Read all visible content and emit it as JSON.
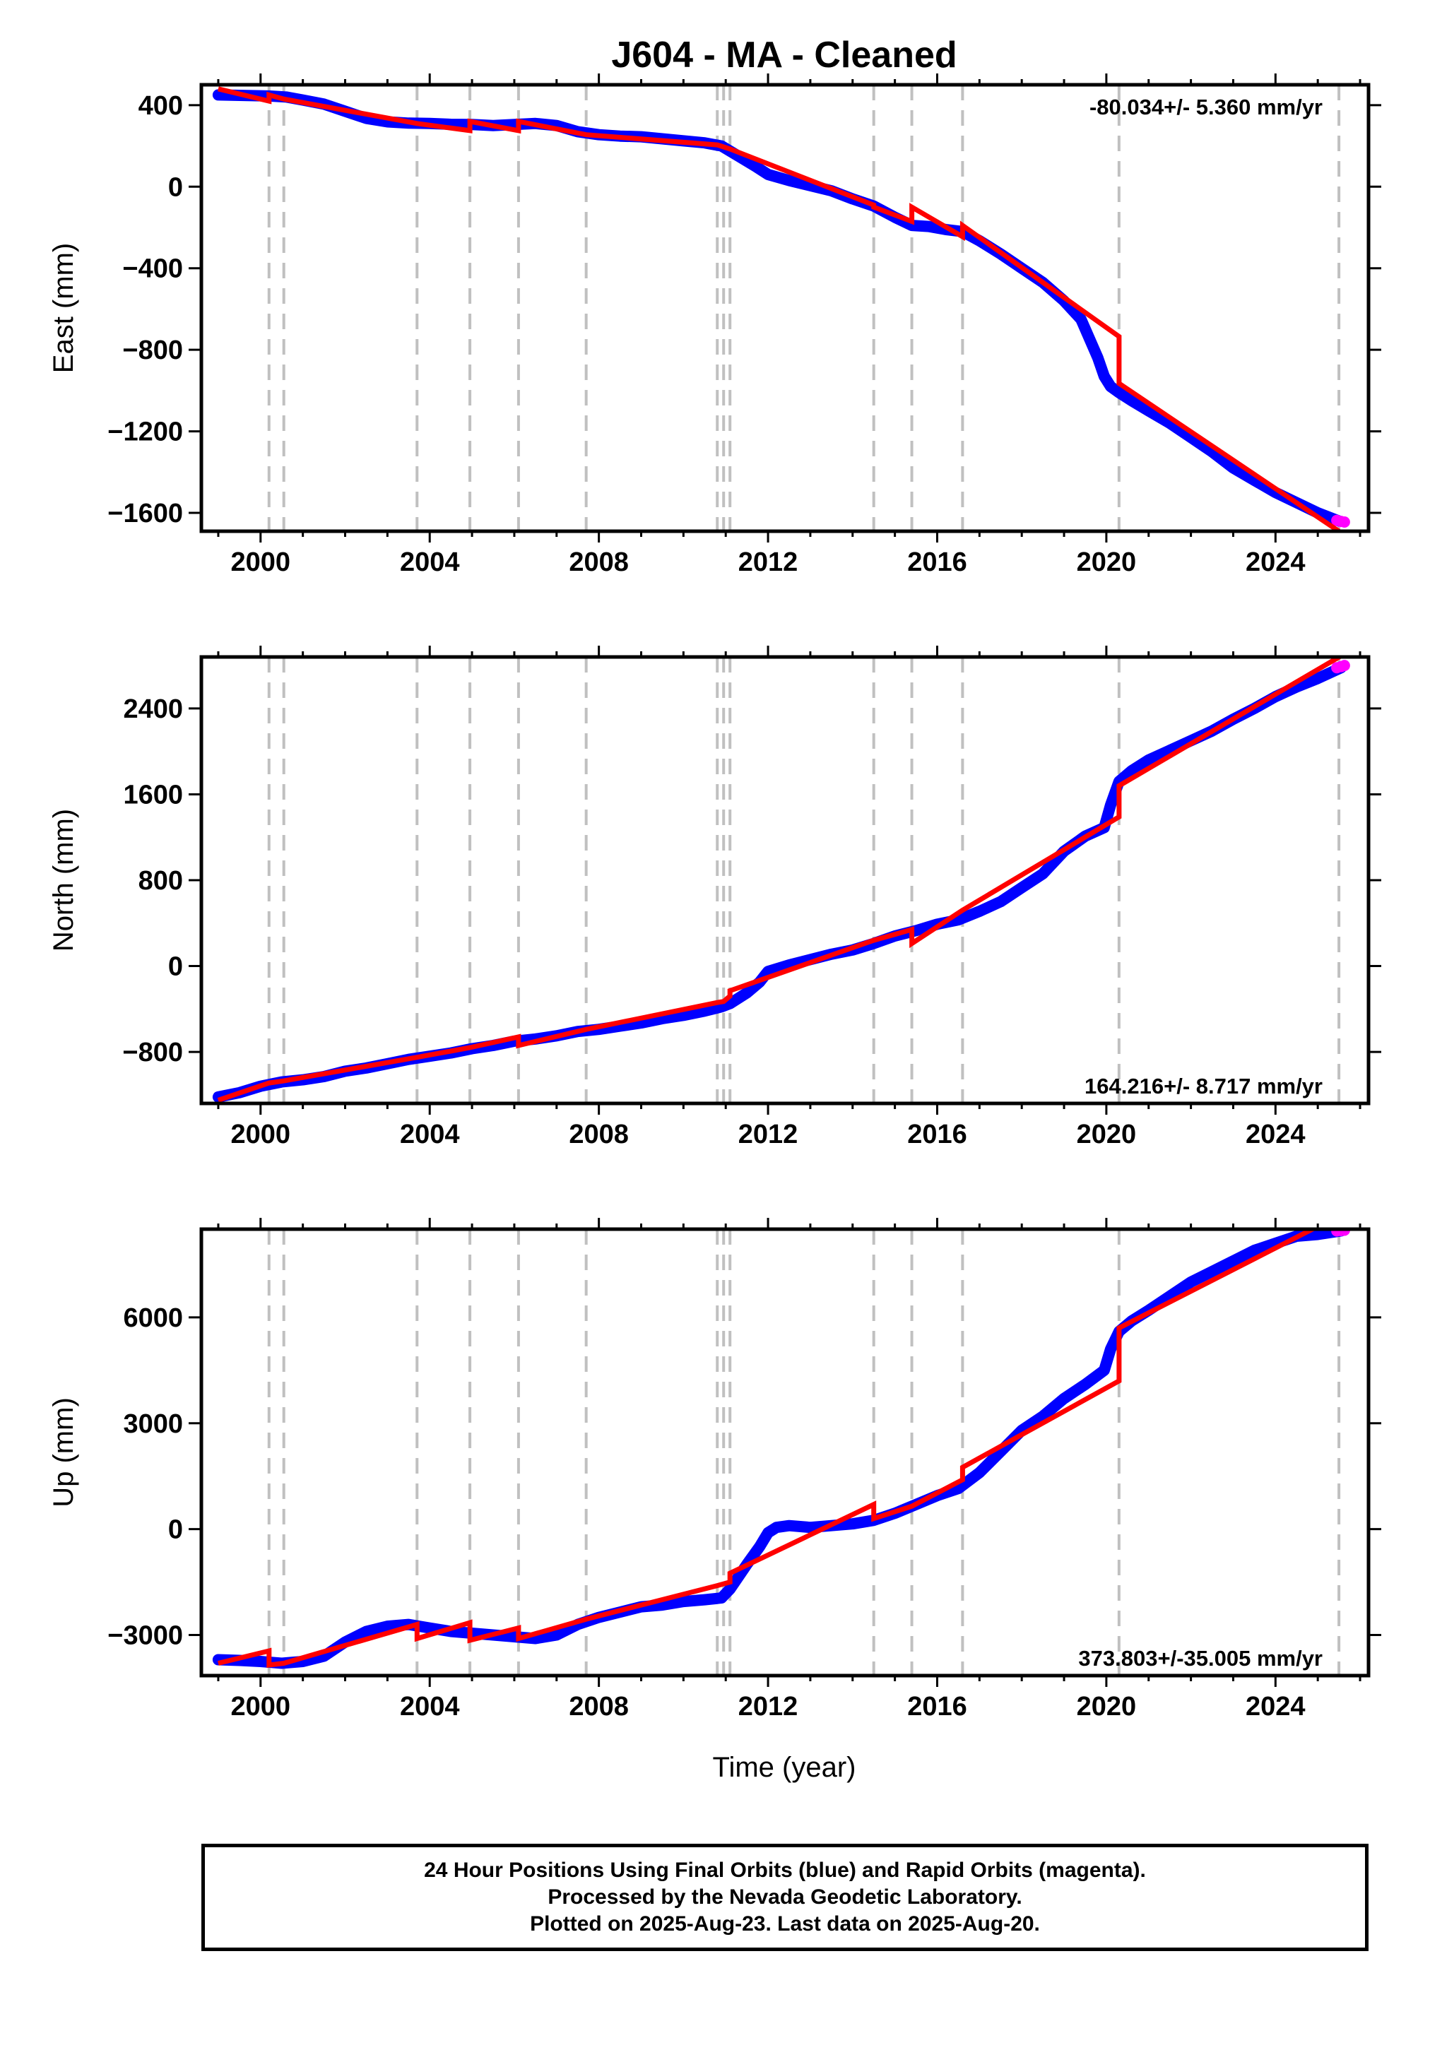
{
  "title": "J604  - MA - Cleaned",
  "xlabel": "Time (year)",
  "colors": {
    "final": "#0000ff",
    "rapid": "#ff00ff",
    "model": "#ff0000",
    "steps": "#c0c0c0"
  },
  "footer": {
    "line1": "24 Hour Positions Using Final Orbits (blue) and Rapid Orbits (magenta).",
    "line2": "Processed by the Nevada Geodetic Laboratory.",
    "line3": "Plotted on 2025-Aug-23. Last data on 2025-Aug-20."
  },
  "chart_data": [
    {
      "type": "scatter",
      "panel": "east",
      "title": "J604  - MA - Cleaned",
      "xlabel": "",
      "ylabel": "East (mm)",
      "rate_label": "-80.034+/- 5.360 mm/yr",
      "rate_position": "top-right",
      "xlim": [
        1998.6,
        2026.2
      ],
      "ylim": [
        -1690,
        500
      ],
      "xticks": [
        2000,
        2004,
        2008,
        2012,
        2016,
        2020,
        2024
      ],
      "xtick_labels": [
        "2000",
        "2004",
        "2008",
        "2012",
        "2016",
        "2020",
        "2024"
      ],
      "yticks": [
        400,
        0,
        -400,
        -800,
        -1200,
        -1600
      ],
      "ytick_labels": [
        "400",
        "0",
        "−400",
        "−800",
        "−1200",
        "−1600"
      ],
      "step_epochs": [
        2000.2,
        2000.55,
        2003.7,
        2004.95,
        2006.1,
        2007.7,
        2010.8,
        2010.95,
        2011.1,
        2014.5,
        2015.4,
        2016.6,
        2020.3,
        2025.5
      ],
      "series": [
        {
          "style": "final-orbits",
          "x": [
            1999.0,
            1999.5,
            2000.2,
            2000.6,
            2001.0,
            2001.5,
            2002.0,
            2002.5,
            2003.0,
            2003.5,
            2004.0,
            2004.5,
            2005.0,
            2005.5,
            2006.0,
            2006.5,
            2007.0,
            2007.5,
            2008.0,
            2008.5,
            2009.0,
            2009.5,
            2010.0,
            2010.5,
            2010.9,
            2011.3,
            2011.7,
            2012.0,
            2012.5,
            2013.0,
            2013.5,
            2014.0,
            2014.5,
            2015.0,
            2015.4,
            2015.8,
            2016.2,
            2016.6,
            2017.0,
            2017.5,
            2018.0,
            2018.5,
            2019.0,
            2019.4,
            2019.8,
            2019.95,
            2020.1,
            2020.3,
            2020.6,
            2021.0,
            2021.5,
            2022.0,
            2022.5,
            2023.0,
            2023.5,
            2024.0,
            2024.5,
            2025.0,
            2025.5
          ],
          "y": [
            450,
            448,
            445,
            440,
            425,
            405,
            370,
            335,
            318,
            312,
            310,
            306,
            305,
            300,
            305,
            310,
            300,
            270,
            255,
            248,
            245,
            235,
            225,
            215,
            200,
            150,
            100,
            60,
            30,
            5,
            -20,
            -60,
            -95,
            -150,
            -190,
            -195,
            -210,
            -220,
            -265,
            -330,
            -400,
            -470,
            -560,
            -650,
            -840,
            -930,
            -980,
            -1010,
            -1050,
            -1100,
            -1160,
            -1230,
            -1300,
            -1380,
            -1440,
            -1500,
            -1550,
            -1600,
            -1640
          ]
        },
        {
          "style": "rapid-orbits",
          "x": [
            2025.45,
            2025.55,
            2025.63
          ],
          "y": [
            -1637,
            -1642,
            -1645
          ]
        },
        {
          "style": "model",
          "x": [
            1999.0,
            2000.2,
            2000.2,
            2000.55,
            2000.55,
            2003.7,
            2003.7,
            2004.95,
            2004.95,
            2006.1,
            2006.1,
            2007.7,
            2007.7,
            2010.8,
            2010.8,
            2010.95,
            2010.95,
            2011.1,
            2011.1,
            2014.5,
            2014.5,
            2015.4,
            2015.4,
            2016.6,
            2016.6,
            2020.3,
            2020.3,
            2025.5
          ],
          "y": [
            480,
            420,
            450,
            430,
            430,
            310,
            310,
            275,
            320,
            275,
            320,
            255,
            255,
            205,
            205,
            195,
            195,
            185,
            185,
            -90,
            -100,
            -170,
            -100,
            -245,
            -190,
            -735,
            -965,
            -1690
          ]
        }
      ]
    },
    {
      "type": "scatter",
      "panel": "north",
      "xlabel": "",
      "ylabel": "North (mm)",
      "rate_label": "164.216+/- 8.717 mm/yr",
      "rate_position": "bottom-right",
      "xlim": [
        1998.6,
        2026.2
      ],
      "ylim": [
        -1280,
        2880
      ],
      "xticks": [
        2000,
        2004,
        2008,
        2012,
        2016,
        2020,
        2024
      ],
      "xtick_labels": [
        "2000",
        "2004",
        "2008",
        "2012",
        "2016",
        "2020",
        "2024"
      ],
      "yticks": [
        2400,
        1600,
        800,
        0,
        -800
      ],
      "ytick_labels": [
        "2400",
        "1600",
        "800",
        "0",
        "−800"
      ],
      "step_epochs": [
        2000.2,
        2000.55,
        2003.7,
        2004.95,
        2006.1,
        2007.7,
        2010.8,
        2010.95,
        2011.1,
        2014.5,
        2015.4,
        2016.6,
        2020.3,
        2025.5
      ],
      "series": [
        {
          "style": "final-orbits",
          "x": [
            1999.0,
            1999.5,
            2000.0,
            2000.5,
            2001.0,
            2001.5,
            2002.0,
            2002.5,
            2003.0,
            2003.5,
            2004.0,
            2004.5,
            2005.0,
            2005.5,
            2006.0,
            2006.5,
            2007.0,
            2007.5,
            2008.0,
            2008.5,
            2009.0,
            2009.5,
            2010.0,
            2010.5,
            2010.9,
            2011.1,
            2011.5,
            2011.8,
            2012.0,
            2012.5,
            2013.0,
            2013.5,
            2014.0,
            2014.5,
            2015.0,
            2015.5,
            2016.0,
            2016.5,
            2017.0,
            2017.5,
            2018.0,
            2018.5,
            2019.0,
            2019.5,
            2019.95,
            2020.1,
            2020.3,
            2020.6,
            2021.0,
            2021.5,
            2022.0,
            2022.5,
            2023.0,
            2023.5,
            2024.0,
            2024.5,
            2025.0,
            2025.55
          ],
          "y": [
            -1220,
            -1180,
            -1120,
            -1080,
            -1060,
            -1030,
            -980,
            -950,
            -910,
            -870,
            -840,
            -810,
            -770,
            -740,
            -700,
            -680,
            -650,
            -610,
            -590,
            -560,
            -530,
            -490,
            -460,
            -420,
            -380,
            -350,
            -250,
            -150,
            -50,
            10,
            60,
            110,
            150,
            210,
            280,
            330,
            390,
            430,
            510,
            600,
            730,
            860,
            1070,
            1210,
            1290,
            1500,
            1720,
            1820,
            1920,
            2010,
            2100,
            2190,
            2300,
            2400,
            2510,
            2600,
            2680,
            2780
          ]
        },
        {
          "style": "rapid-orbits",
          "x": [
            2025.45,
            2025.55,
            2025.63
          ],
          "y": [
            2780,
            2790,
            2800
          ]
        },
        {
          "style": "model",
          "x": [
            1999.0,
            2000.2,
            2000.2,
            2000.55,
            2000.55,
            2003.7,
            2003.7,
            2004.95,
            2004.95,
            2006.1,
            2006.1,
            2007.7,
            2007.7,
            2010.8,
            2010.8,
            2010.95,
            2010.95,
            2011.1,
            2011.1,
            2014.5,
            2014.5,
            2015.4,
            2015.4,
            2016.6,
            2016.6,
            2020.3,
            2020.3,
            2025.55
          ],
          "y": [
            -1250,
            -1090,
            -1090,
            -1070,
            -1070,
            -850,
            -850,
            -760,
            -760,
            -660,
            -740,
            -590,
            -590,
            -340,
            -340,
            -330,
            -330,
            -280,
            -230,
            240,
            240,
            340,
            210,
            520,
            520,
            1390,
            1680,
            2890
          ]
        }
      ]
    },
    {
      "type": "scatter",
      "panel": "up",
      "xlabel": "Time (year)",
      "ylabel": "Up (mm)",
      "rate_label": "373.803+/-35.005 mm/yr",
      "rate_position": "bottom-right",
      "xlim": [
        1998.6,
        2026.2
      ],
      "ylim": [
        -4150,
        8500
      ],
      "xticks": [
        2000,
        2004,
        2008,
        2012,
        2016,
        2020,
        2024
      ],
      "xtick_labels": [
        "2000",
        "2004",
        "2008",
        "2012",
        "2016",
        "2020",
        "2024"
      ],
      "yticks": [
        6000,
        3000,
        0,
        -3000
      ],
      "ytick_labels": [
        "6000",
        "3000",
        "0",
        "−3000"
      ],
      "step_epochs": [
        2000.2,
        2000.55,
        2003.7,
        2004.95,
        2006.1,
        2007.7,
        2010.8,
        2010.95,
        2011.1,
        2014.5,
        2015.4,
        2016.6,
        2020.3,
        2025.5
      ],
      "series": [
        {
          "style": "final-orbits",
          "x": [
            1999.0,
            1999.5,
            2000.0,
            2000.5,
            2001.0,
            2001.5,
            2002.0,
            2002.5,
            2003.0,
            2003.5,
            2004.0,
            2004.5,
            2005.0,
            2005.5,
            2006.0,
            2006.5,
            2007.0,
            2007.5,
            2008.0,
            2008.5,
            2009.0,
            2009.5,
            2010.0,
            2010.5,
            2010.9,
            2011.1,
            2011.5,
            2011.8,
            2012.0,
            2012.2,
            2012.5,
            2013.0,
            2013.5,
            2014.0,
            2014.5,
            2015.0,
            2015.5,
            2016.0,
            2016.5,
            2017.0,
            2017.5,
            2018.0,
            2018.5,
            2019.0,
            2019.5,
            2019.95,
            2020.1,
            2020.3,
            2020.6,
            2021.0,
            2021.5,
            2022.0,
            2022.5,
            2023.0,
            2023.5,
            2024.0,
            2024.5,
            2025.0,
            2025.55
          ],
          "y": [
            -3700,
            -3720,
            -3750,
            -3800,
            -3750,
            -3600,
            -3200,
            -2900,
            -2750,
            -2700,
            -2800,
            -2900,
            -2950,
            -3000,
            -3050,
            -3100,
            -3000,
            -2700,
            -2500,
            -2350,
            -2200,
            -2150,
            -2050,
            -2000,
            -1950,
            -1700,
            -1000,
            -500,
            -100,
            50,
            100,
            50,
            100,
            150,
            250,
            450,
            700,
            950,
            1150,
            1600,
            2200,
            2800,
            3200,
            3700,
            4100,
            4500,
            5100,
            5600,
            5900,
            6200,
            6600,
            7000,
            7300,
            7600,
            7900,
            8100,
            8300,
            8350,
            8450
          ]
        },
        {
          "style": "rapid-orbits",
          "x": [
            2025.45,
            2025.55,
            2025.63
          ],
          "y": [
            8450,
            8460,
            8470
          ]
        },
        {
          "style": "model",
          "x": [
            1999.0,
            2000.2,
            2000.2,
            2000.55,
            2000.55,
            2003.7,
            2003.7,
            2004.95,
            2004.95,
            2006.1,
            2006.1,
            2007.7,
            2007.7,
            2010.8,
            2010.8,
            2010.95,
            2010.95,
            2011.1,
            2011.1,
            2014.5,
            2014.5,
            2015.4,
            2015.4,
            2016.6,
            2016.6,
            2020.3,
            2020.3,
            2025.2
          ],
          "y": [
            -3800,
            -3450,
            -3850,
            -3800,
            -3800,
            -2700,
            -3100,
            -2650,
            -3150,
            -2800,
            -3100,
            -2550,
            -2550,
            -1600,
            -1600,
            -1550,
            -1550,
            -1500,
            -1250,
            700,
            300,
            650,
            650,
            1400,
            1750,
            4200,
            5700,
            8700
          ]
        }
      ]
    }
  ]
}
